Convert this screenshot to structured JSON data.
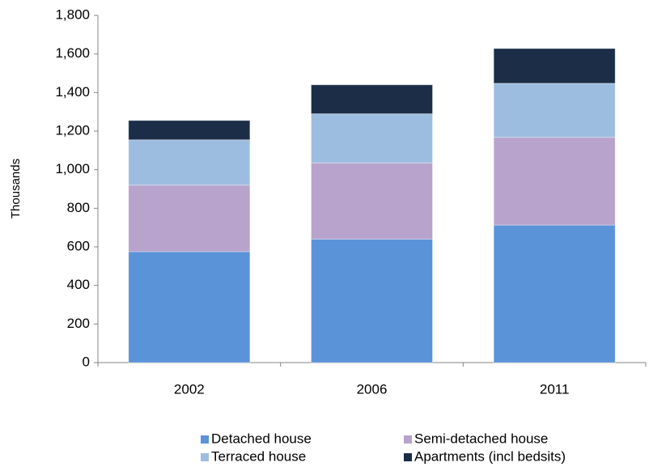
{
  "chart_data": {
    "type": "stacked_bar",
    "y_label": "Thousands",
    "categories": [
      "2002",
      "2006",
      "2011"
    ],
    "series": [
      {
        "name": "Detached house",
        "color": "#5b93d9",
        "values": [
          575,
          640,
          713
        ]
      },
      {
        "name": "Semi-detached house",
        "color": "#b8a3cc",
        "values": [
          345,
          395,
          455
        ]
      },
      {
        "name": "Terraced house",
        "color": "#9dbde0",
        "values": [
          235,
          255,
          280
        ]
      },
      {
        "name": "Apartments (incl bedsits)",
        "color": "#1c2d47",
        "values": [
          100,
          150,
          180
        ]
      }
    ],
    "ylim": [
      0,
      1800
    ],
    "yticks": [
      0,
      200,
      400,
      600,
      800,
      {
        "value": 1000,
        "label": "1,000"
      },
      {
        "value": 1200,
        "label": "1,200"
      },
      {
        "value": 1400,
        "label": "1,400"
      },
      {
        "value": 1600,
        "label": "1,600"
      },
      {
        "value": 1800,
        "label": "1,800"
      }
    ],
    "grid": false,
    "legend": "bottom"
  }
}
